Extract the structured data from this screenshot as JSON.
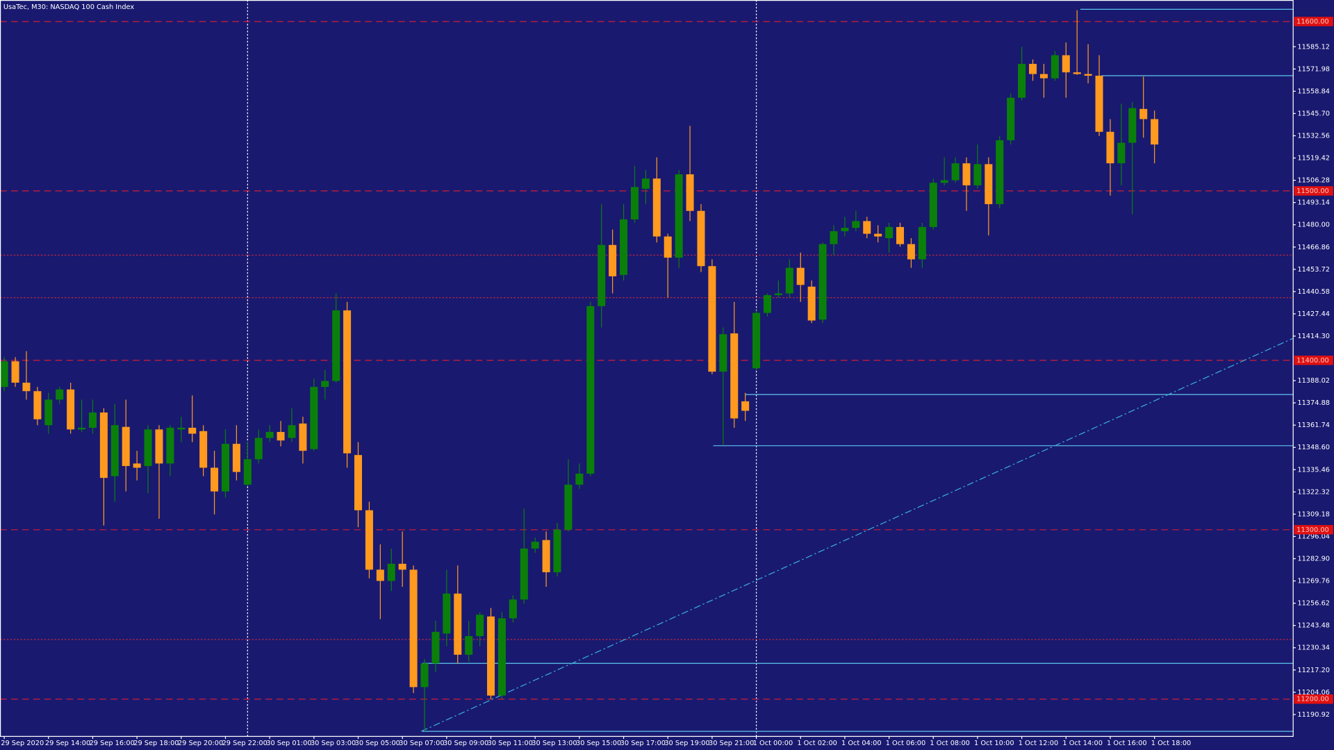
{
  "chart_data": {
    "type": "candlestick",
    "title": "UsaTec, M30:  NASDAQ 100 Cash Index",
    "categories": [
      "29 Sep 2020",
      null,
      null,
      null,
      "29 Sep 14:00",
      null,
      null,
      null,
      "29 Sep 16:00",
      null,
      null,
      null,
      "29 Sep 18:00",
      null,
      null,
      null,
      "29 Sep 20:00",
      null,
      null,
      null,
      "29 Sep 22:00",
      null,
      null,
      null,
      "30 Sep 01:00",
      null,
      null,
      null,
      "30 Sep 03:00",
      null,
      null,
      null,
      "30 Sep 05:00",
      null,
      null,
      null,
      "30 Sep 07:00",
      null,
      null,
      null,
      "30 Sep 09:00",
      null,
      null,
      null,
      "30 Sep 11:00",
      null,
      null,
      null,
      "30 Sep 13:00",
      null,
      null,
      null,
      "30 Sep 15:00",
      null,
      null,
      null,
      "30 Sep 17:00",
      null,
      null,
      null,
      "30 Sep 19:00",
      null,
      null,
      null,
      "30 Sep 21:00",
      null,
      null,
      null,
      "1 Oct 00:00",
      null,
      null,
      null,
      "1 Oct 02:00",
      null,
      null,
      null,
      "1 Oct 04:00",
      null,
      null,
      null,
      "1 Oct 06:00",
      null,
      null,
      null,
      "1 Oct 08:00",
      null,
      null,
      null,
      "1 Oct 10:00",
      null,
      null,
      null,
      "1 Oct 12:00",
      null,
      null,
      null,
      "1 Oct 14:00",
      null,
      null,
      null,
      "1 Oct 16:00",
      null,
      null,
      null,
      "1 Oct 18:00"
    ],
    "open": [
      11384.3,
      11399.4,
      11386.8,
      11381.8,
      11361.7,
      11376.8,
      11382.8,
      11359.2,
      11360.2,
      11369.2,
      11331.6,
      11360.7,
      11339.1,
      11337.6,
      11359.2,
      11339.1,
      11359.2,
      11360.2,
      11358.2,
      11336.6,
      11322.6,
      11350.7,
      11326.6,
      11341.6,
      11354.2,
      11357.7,
      11354.2,
      11362.7,
      11347.6,
      11384.3,
      11387.8,
      11429.5,
      11344.1,
      11311.5,
      11276.4,
      11269.8,
      11279.9,
      11276.4,
      11207.1,
      11221.1,
      11238.7,
      11262.3,
      11226.2,
      11237.2,
      11248.8,
      11202.1,
      11247.7,
      11258.8,
      11288.9,
      11293.9,
      11274.9,
      11300.0,
      11326.6,
      11333.1,
      11432.0,
      11468.1,
      11450.4,
      11483.2,
      11501.3,
      11507.3,
      11473.1,
      11460.6,
      11509.8,
      11488.2,
      11455.6,
      11393.3,
      11415.9,
      11375.8,
      11395.3,
      11428.0,
      11438.5,
      11439.5,
      11454.6,
      11443.5,
      11424.0,
      11468.6,
      11476.2,
      11478.2,
      11482.2,
      11474.7,
      11472.1,
      11478.7,
      11468.6,
      11459.6,
      11478.7,
      11504.8,
      11506.3,
      11516.3,
      11503.3,
      11515.8,
      11492.2,
      11529.9,
      11555.0,
      11575.0,
      11569.0,
      11566.5,
      11580.1,
      11570.0,
      11569.0,
      11568.0,
      11534.9,
      11516.3,
      11528.4,
      11548.4,
      11542.4
    ],
    "high": [
      11401.9,
      11401.9,
      11405.4,
      11384.3,
      11380.8,
      11384.3,
      11386.8,
      11376.8,
      11376.8,
      11371.7,
      11374.3,
      11376.8,
      11346.6,
      11361.7,
      11361.7,
      11361.7,
      11366.7,
      11379.3,
      11361.7,
      11346.6,
      11359.2,
      11361.7,
      11351.7,
      11359.2,
      11361.7,
      11364.2,
      11371.7,
      11366.7,
      11389.3,
      11394.3,
      11439.5,
      11434.5,
      11351.7,
      11316.5,
      11291.4,
      11288.9,
      11299.0,
      11278.9,
      11223.7,
      11246.2,
      11276.4,
      11278.9,
      11246.2,
      11251.3,
      11253.8,
      11251.3,
      11261.3,
      11312.5,
      11295.4,
      11299.0,
      11304.0,
      11341.6,
      11339.1,
      11434.5,
      11492.2,
      11477.2,
      11492.2,
      11514.8,
      11512.3,
      11519.8,
      11474.7,
      11512.3,
      11538.4,
      11492.2,
      11459.6,
      11419.4,
      11434.5,
      11380.8,
      11429.5,
      11439.5,
      11447.1,
      11459.6,
      11463.6,
      11447.1,
      11469.6,
      11479.7,
      11484.7,
      11488.2,
      11484.7,
      11479.7,
      11481.2,
      11481.2,
      11472.1,
      11481.2,
      11507.3,
      11519.8,
      11519.8,
      11519.8,
      11527.4,
      11519.8,
      11532.4,
      11557.5,
      11585.1,
      11577.6,
      11575.0,
      11582.6,
      11587.6,
      11606.7,
      11586.6,
      11580.1,
      11542.4,
      11551.5,
      11552.5,
      11567.5,
      11547.4
    ],
    "low": [
      11381.8,
      11384.3,
      11376.8,
      11361.7,
      11356.7,
      11374.3,
      11356.7,
      11357.7,
      11356.7,
      11302.5,
      11316.5,
      11322.6,
      11329.1,
      11321.5,
      11306.5,
      11331.6,
      11351.7,
      11351.7,
      11331.6,
      11309.0,
      11319.0,
      11329.1,
      11325.6,
      11339.1,
      11351.7,
      11349.2,
      11351.7,
      11339.1,
      11346.6,
      11376.8,
      11386.8,
      11336.6,
      11301.5,
      11271.3,
      11247.2,
      11263.8,
      11266.3,
      11203.6,
      11181.0,
      11216.1,
      11231.2,
      11221.1,
      11222.1,
      11231.2,
      11200.1,
      11200.1,
      11245.2,
      11256.3,
      11286.4,
      11266.3,
      11272.4,
      11299.0,
      11324.1,
      11331.6,
      11419.4,
      11439.5,
      11447.1,
      11481.2,
      11492.2,
      11469.6,
      11437.0,
      11454.6,
      11482.2,
      11452.1,
      11391.8,
      11350.2,
      11360.2,
      11364.2,
      11394.3,
      11426.0,
      11437.0,
      11437.0,
      11434.5,
      11422.0,
      11422.0,
      11462.1,
      11473.1,
      11476.2,
      11472.1,
      11469.6,
      11463.6,
      11467.1,
      11454.6,
      11454.6,
      11477.2,
      11503.3,
      11504.8,
      11488.2,
      11501.3,
      11473.7,
      11489.7,
      11527.4,
      11553.5,
      11565.0,
      11555.0,
      11565.0,
      11555.0,
      11568.5,
      11563.5,
      11532.4,
      11497.2,
      11503.3,
      11486.2,
      11531.4,
      11516.3
    ],
    "close": [
      11399.4,
      11386.8,
      11381.8,
      11365.2,
      11376.8,
      11382.8,
      11359.2,
      11360.2,
      11369.2,
      11330.6,
      11361.7,
      11337.6,
      11336.6,
      11359.2,
      11339.1,
      11360.2,
      11360.2,
      11356.7,
      11336.6,
      11322.6,
      11350.7,
      11334.1,
      11341.6,
      11354.2,
      11357.7,
      11352.7,
      11361.7,
      11346.6,
      11384.3,
      11387.8,
      11429.5,
      11345.1,
      11311.5,
      11276.4,
      11269.8,
      11279.9,
      11276.4,
      11207.1,
      11221.1,
      11239.7,
      11262.3,
      11226.2,
      11237.2,
      11249.8,
      11202.1,
      11247.7,
      11258.8,
      11288.9,
      11292.9,
      11274.9,
      11300.0,
      11326.6,
      11333.1,
      11432.0,
      11468.1,
      11449.6,
      11483.2,
      11502.3,
      11507.3,
      11473.1,
      11460.6,
      11509.8,
      11488.2,
      11455.6,
      11393.3,
      11415.4,
      11365.7,
      11370.2,
      11428.0,
      11438.5,
      11439.5,
      11454.6,
      11444.5,
      11423.5,
      11468.6,
      11476.2,
      11478.2,
      11482.2,
      11474.7,
      11473.1,
      11478.7,
      11468.6,
      11459.6,
      11478.7,
      11504.8,
      11506.3,
      11516.3,
      11503.3,
      11515.8,
      11492.2,
      11529.9,
      11555.0,
      11575.0,
      11569.0,
      11566.5,
      11580.1,
      11570.0,
      11569.0,
      11568.0,
      11534.9,
      11516.3,
      11528.4,
      11548.9,
      11542.4,
      11527.4
    ],
    "up_color": "#0a800a",
    "down_color": "#ff9a1e",
    "ylim": [
      11178.0,
      11612.7
    ],
    "yticks": [
      11585.12,
      11571.98,
      11558.84,
      {
        "value": 11545.7,
        "label": "11545.70"
      },
      11532.56,
      11519.42,
      11506.28,
      11493.14,
      {
        "value": 11480,
        "label": "11480.00"
      },
      11466.86,
      11453.72,
      11440.58,
      11427.44,
      {
        "value": 11414.3,
        "label": "11414.30"
      },
      11388.02,
      11374.88,
      11361.74,
      {
        "value": 11348.6,
        "label": "11348.60"
      },
      11335.46,
      11322.32,
      11309.18,
      11296.04,
      {
        "value": 11282.9,
        "label": "11282.90"
      },
      11269.76,
      11256.62,
      11243.48,
      11230.34,
      {
        "value": 11217.2,
        "label": "11217.20"
      },
      11204.06,
      11190.92
    ],
    "levels": [
      {
        "value": 11600,
        "label": "11600.00"
      },
      {
        "value": 11500,
        "label": "11500.00"
      },
      {
        "value": 11400,
        "label": "11400.00"
      },
      {
        "value": 11300,
        "label": "11300.00"
      },
      {
        "value": 11200,
        "label": "11200.00"
      }
    ],
    "dotted_levels": [
      11462.1,
      11437.0,
      11235.2
    ],
    "hlines": [
      {
        "price": 11607.2,
        "start": 97.3
      },
      {
        "price": 11568.0,
        "start": 99.2
      },
      {
        "price": 11379.8,
        "start": 67.0
      },
      {
        "price": 11349.6,
        "start": 64.1
      },
      {
        "price": 11221.1,
        "start": 37.8
      },
      {
        "price": 11181.0,
        "start": 37.8
      }
    ],
    "trendline": {
      "x": [
        37.7,
        116.5
      ],
      "y": [
        11181.0,
        11412.9
      ]
    },
    "separators": [
      22,
      68
    ]
  }
}
